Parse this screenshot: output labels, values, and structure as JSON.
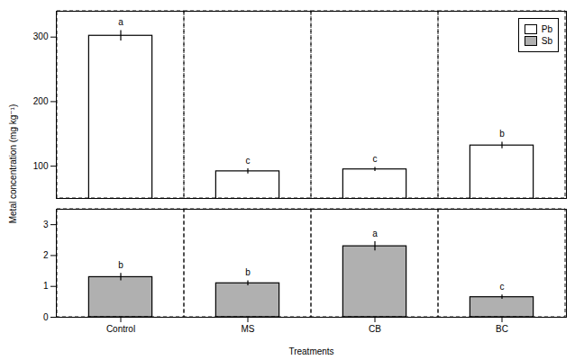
{
  "chart_data": [
    {
      "type": "bar",
      "ylabel": "Metal concentration (mg kg⁻¹)",
      "categories": [
        "Control",
        "MS",
        "CB",
        "BC"
      ],
      "series": [
        {
          "name": "Pb",
          "color": "white",
          "values": [
            302,
            92,
            95,
            132
          ],
          "errors": [
            8,
            4,
            3,
            5
          ],
          "annotations": [
            "a",
            "c",
            "c",
            "b"
          ]
        }
      ],
      "ylim": [
        50,
        340
      ],
      "yticks": [
        100,
        200,
        300
      ],
      "legend": "upper right",
      "grid": false,
      "tick_labels": "y"
    },
    {
      "type": "bar",
      "xlabel": "Treatments",
      "categories": [
        "Control",
        "MS",
        "CB",
        "BC"
      ],
      "series": [
        {
          "name": "Sb",
          "color": "#b0b0b0",
          "values": [
            1.3,
            1.1,
            2.3,
            0.65
          ],
          "errors": [
            0.12,
            0.08,
            0.15,
            0.07
          ],
          "annotations": [
            "b",
            "b",
            "a",
            "c"
          ]
        }
      ],
      "ylim": [
        0,
        3.5
      ],
      "yticks": [
        0,
        1,
        2,
        3
      ],
      "grid": false
    }
  ]
}
